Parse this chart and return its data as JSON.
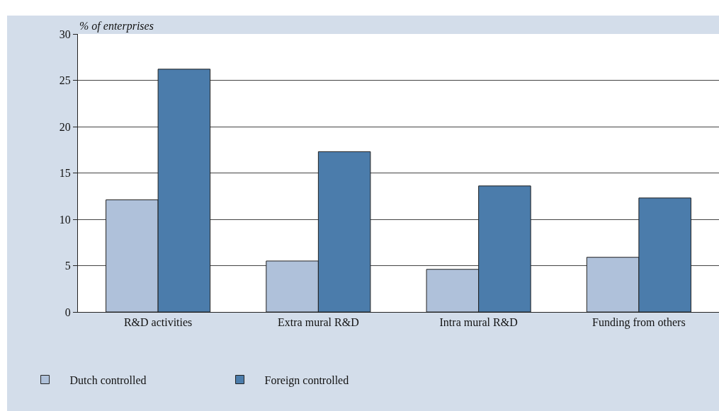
{
  "chart_data": {
    "type": "bar",
    "ylabel": "% of enterprises",
    "categories": [
      "R&D activities",
      "Extra mural R&D",
      "Intra mural R&D",
      "Funding from others"
    ],
    "series": [
      {
        "name": "Dutch controlled",
        "color": "#afc1da",
        "values": [
          12.1,
          5.5,
          4.6,
          5.9
        ]
      },
      {
        "name": "Foreign controlled",
        "color": "#4b7cab",
        "values": [
          26.2,
          17.3,
          13.6,
          12.3
        ]
      }
    ],
    "ylim": [
      0,
      30
    ],
    "yticks": [
      0,
      5,
      10,
      15,
      20,
      25,
      30
    ],
    "grid": "y",
    "legend": "bottom left"
  }
}
